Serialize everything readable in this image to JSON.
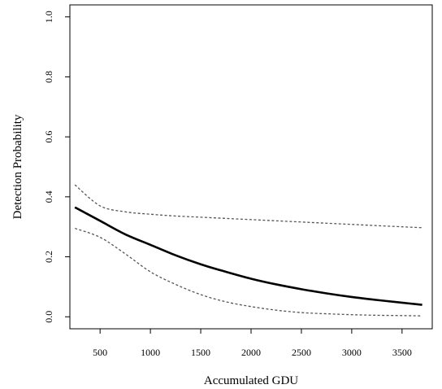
{
  "chart_data": {
    "type": "line",
    "title": "",
    "xlabel": "Accumulated GDU",
    "ylabel": "Detection Probability",
    "xlim": [
      200,
      3800
    ],
    "ylim": [
      -0.04,
      1.04
    ],
    "x_ticks": [
      500,
      1000,
      1500,
      2000,
      2500,
      3000,
      3500
    ],
    "x_tick_labels": [
      "500",
      "1000",
      "1500",
      "2000",
      "2500",
      "3000",
      "3500"
    ],
    "y_ticks": [
      0.0,
      0.2,
      0.4,
      0.6,
      0.8,
      1.0
    ],
    "y_tick_labels": [
      "0.0",
      "0.2",
      "0.4",
      "0.6",
      "0.8",
      "1.0"
    ],
    "grid": false,
    "legend": "none",
    "series": [
      {
        "role": "estimate",
        "style": "solid",
        "color": "#000000",
        "x": [
          250,
          500,
          750,
          1000,
          1250,
          1500,
          1750,
          2000,
          2250,
          2500,
          2750,
          3000,
          3250,
          3500,
          3700
        ],
        "y": [
          0.365,
          0.32,
          0.275,
          0.24,
          0.205,
          0.175,
          0.15,
          0.127,
          0.108,
          0.092,
          0.078,
          0.066,
          0.056,
          0.047,
          0.04
        ]
      },
      {
        "role": "upper-bound",
        "style": "dashed",
        "color": "#555555",
        "x": [
          250,
          500,
          750,
          1000,
          1250,
          1500,
          1750,
          2000,
          2250,
          2500,
          2750,
          3000,
          3250,
          3500,
          3700
        ],
        "y": [
          0.44,
          0.37,
          0.35,
          0.342,
          0.336,
          0.332,
          0.328,
          0.324,
          0.32,
          0.316,
          0.312,
          0.308,
          0.304,
          0.3,
          0.297
        ]
      },
      {
        "role": "lower-bound",
        "style": "dashed",
        "color": "#555555",
        "x": [
          250,
          500,
          750,
          1000,
          1250,
          1500,
          1750,
          2000,
          2250,
          2500,
          2750,
          3000,
          3250,
          3500,
          3700
        ],
        "y": [
          0.295,
          0.265,
          0.21,
          0.15,
          0.108,
          0.074,
          0.05,
          0.034,
          0.022,
          0.014,
          0.01,
          0.007,
          0.005,
          0.004,
          0.003
        ]
      }
    ]
  }
}
